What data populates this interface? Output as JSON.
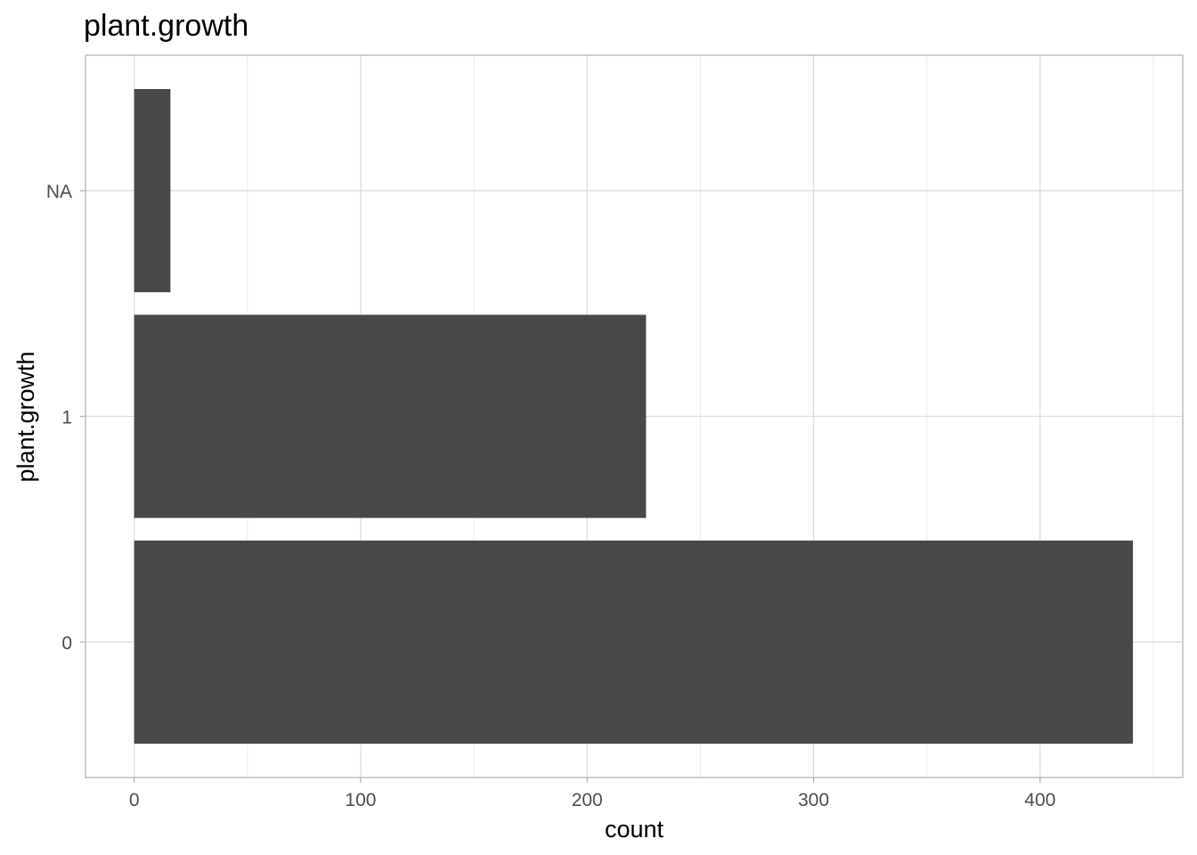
{
  "chart_data": {
    "type": "bar",
    "orientation": "horizontal",
    "title": "plant.growth",
    "xlabel": "count",
    "ylabel": "plant.growth",
    "categories": [
      "0",
      "1",
      "NA"
    ],
    "values": [
      441,
      226,
      16
    ],
    "xlim": [
      -21.5,
      463
    ],
    "x_ticks": [
      0,
      100,
      200,
      300,
      400
    ],
    "x_minor_ticks": [
      50,
      150,
      250,
      350,
      450
    ],
    "grid": true,
    "legend": "none",
    "bar_color": "#484848"
  }
}
